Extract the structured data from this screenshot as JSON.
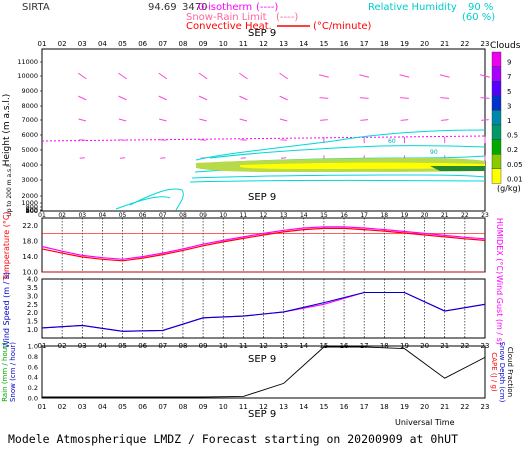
{
  "header": {
    "station": "SIRTA",
    "coords": "94.69",
    "coords2": "3470",
    "isotherm_label": "0-isotherm",
    "isotherm_key": "(----)",
    "snow_label": "Snow-Rain Limit",
    "snow_key": "(----)",
    "conv_label": "Convective Heat.",
    "conv_unit": "(°C/minute)",
    "rh_label": "Relative Humidity",
    "rh_90": "90 %",
    "rh_60": "(60 %)"
  },
  "hours": [
    "01",
    "02",
    "03",
    "04",
    "05",
    "06",
    "07",
    "08",
    "09",
    "10",
    "11",
    "12",
    "13",
    "14",
    "15",
    "16",
    "17",
    "18",
    "19",
    "20",
    "21",
    "22",
    "23"
  ],
  "date_label": "SEP  9",
  "footer": {
    "universal_time": "Universal Time",
    "forecast_text": "Modele Atmospherique LMDZ / Forecast starting on 20200909 at 0hUT"
  },
  "colors": {
    "magenta": "#ff00ff",
    "red": "#ff0000",
    "blue": "#0000cc",
    "cyan": "#00e5e5",
    "green": "#00aa00",
    "black": "#000000"
  },
  "chart_data": [
    {
      "type": "contour-profile",
      "ylabel": "Height  (m a.s.l.)",
      "ylabel_small": "Up to 200 m a.s.l.",
      "yticks": [
        "11000",
        "10000",
        "9000",
        "8000",
        "7000",
        "6000",
        "5000",
        "4000",
        "3000",
        "2000",
        "1000",
        "800",
        "600",
        "400",
        "200",
        "100"
      ],
      "isotherm_height": 3500,
      "cloud_legend": {
        "title": "Clouds",
        "unit": "(g/kg)",
        "levels": [
          "9",
          "7",
          "5",
          "3",
          "1",
          "0.5",
          "0.2",
          "0.05",
          "0.01"
        ],
        "colors": [
          "#ee00ee",
          "#aa00ff",
          "#5500ff",
          "#0033cc",
          "#0088aa",
          "#009966",
          "#00aa00",
          "#88cc00",
          "#ffff00"
        ]
      },
      "contour_labels": [
        "60",
        "90"
      ]
    },
    {
      "type": "line",
      "ylabel_left": "Temperature  (°C)",
      "ylabel_right": "HUMIDEX  (°C)",
      "yticks": [
        "22.0",
        "18.0",
        "14.0",
        "10.0"
      ],
      "ylim": [
        10,
        24
      ],
      "x": [
        1,
        2,
        3,
        4,
        5,
        6,
        7,
        8,
        9,
        10,
        11,
        12,
        13,
        14,
        15,
        16,
        17,
        18,
        19,
        20,
        21,
        22,
        23
      ],
      "series": [
        {
          "values": [
            16.0,
            14.9,
            13.9,
            13.3,
            12.9,
            13.6,
            14.5,
            15.6,
            16.8,
            17.8,
            18.7,
            19.6,
            20.4,
            21.0,
            21.3,
            21.3,
            21.0,
            20.6,
            20.1,
            19.6,
            19.1,
            18.6,
            18.2
          ]
        },
        {
          "values": [
            16.6,
            15.4,
            14.3,
            13.7,
            13.3,
            14.0,
            14.9,
            16.0,
            17.2,
            18.2,
            19.1,
            20.0,
            20.8,
            21.4,
            21.7,
            21.7,
            21.4,
            21.0,
            20.5,
            20.0,
            19.5,
            19.0,
            18.6
          ]
        }
      ],
      "reference_lines": [
        20.0,
        10.0
      ]
    },
    {
      "type": "line",
      "ylabel_left": "Wind Speed  (m / s)",
      "ylabel_right": "Wind Gust  (m / s)",
      "yticks": [
        "4.0",
        "3.5",
        "3.0",
        "2.5",
        "2.0",
        "1.5",
        "1.0"
      ],
      "ylim": [
        0.5,
        4.0
      ],
      "x": [
        1,
        3,
        5,
        7,
        9,
        11,
        13,
        15,
        17,
        19,
        21,
        23
      ],
      "series": [
        {
          "values": [
            1.1,
            1.25,
            0.9,
            0.95,
            1.7,
            1.8,
            2.05,
            2.6,
            3.2,
            3.2,
            2.1,
            2.5
          ]
        },
        {
          "values": [
            1.1,
            1.25,
            0.9,
            0.95,
            1.7,
            1.8,
            2.05,
            2.5,
            3.2,
            3.2,
            2.1,
            2.5
          ]
        }
      ]
    },
    {
      "type": "line",
      "ylabel_left": "Rain (mm / hour)",
      "ylabel_left2": "Snow (cm / hour)",
      "ylabel_right": "CAPE (J / g)",
      "ylabel_right2": "Snow Depth (cm)",
      "ylabel_right3": "Cloud Fraction",
      "yticks": [
        "1.0",
        "0.8",
        "0.6",
        "0.4",
        "0.2",
        "0.0"
      ],
      "ylim": [
        0,
        1
      ],
      "x": [
        1,
        3,
        5,
        7,
        9,
        11,
        13,
        15,
        17,
        19,
        21,
        23
      ],
      "series": [
        {
          "values": [
            0.02,
            0.02,
            0.02,
            0.02,
            0.02,
            0.03,
            0.28,
            0.98,
            0.98,
            0.95,
            0.38,
            0.78
          ]
        }
      ]
    }
  ]
}
